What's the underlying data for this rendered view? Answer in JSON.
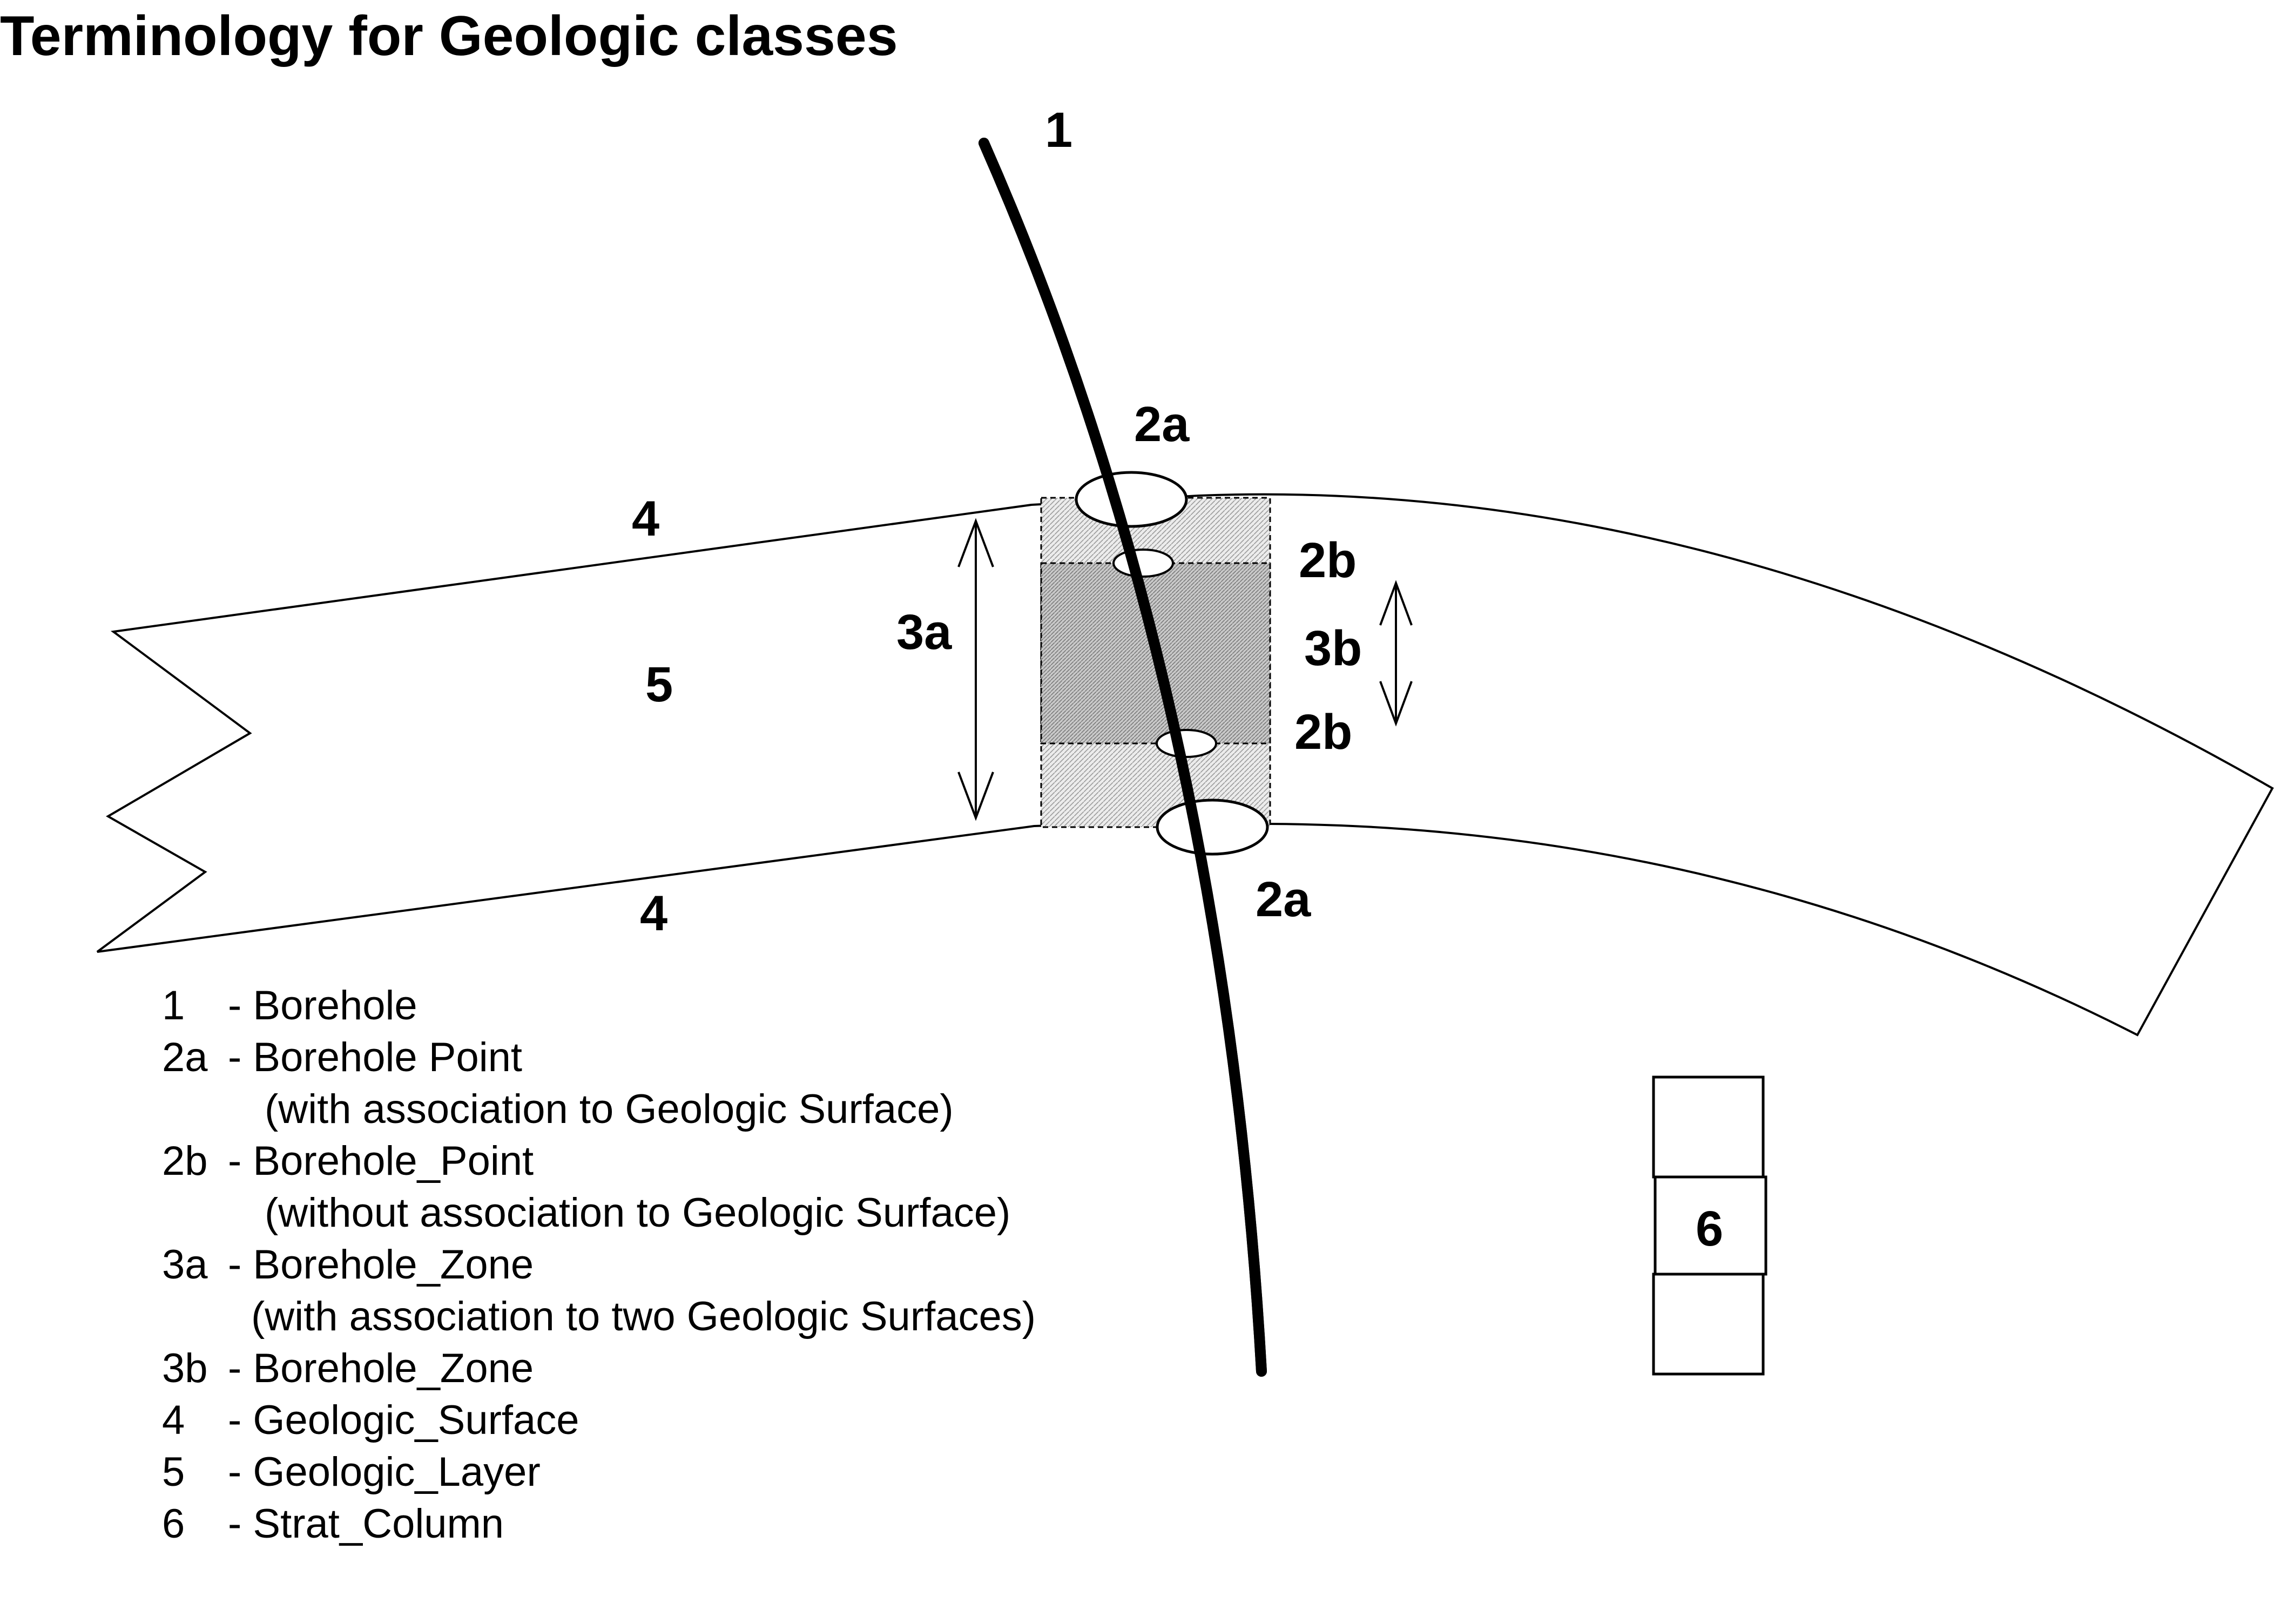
{
  "title": "Terminology for Geologic classes",
  "labels": {
    "borehole": "1",
    "point_top": "2a",
    "point_bottom": "2a",
    "point_upper_small": "2b",
    "point_lower_small": "2b",
    "zone_full": "3a",
    "zone_inner": "3b",
    "surface_top": "4",
    "surface_bottom": "4",
    "layer": "5",
    "strat_column": "6"
  },
  "legend": [
    {
      "num": "1",
      "text": "- Borehole"
    },
    {
      "num": "2a",
      "text": "- Borehole Point"
    },
    {
      "num": "",
      "text": "(with association to Geologic Surface)"
    },
    {
      "num": "2b",
      "text": "- Borehole_Point"
    },
    {
      "num": "",
      "text": "(without association to Geologic Surface)"
    },
    {
      "num": "3a",
      "text": "- Borehole_Zone"
    },
    {
      "num": "",
      "text": "(with association to two Geologic Surfaces)"
    },
    {
      "num": "3b",
      "text": "- Borehole_Zone"
    },
    {
      "num": "4",
      "text": "- Geologic_Surface"
    },
    {
      "num": "5",
      "text": "- Geologic_Layer"
    },
    {
      "num": "6",
      "text": "- Strat_Column"
    }
  ]
}
